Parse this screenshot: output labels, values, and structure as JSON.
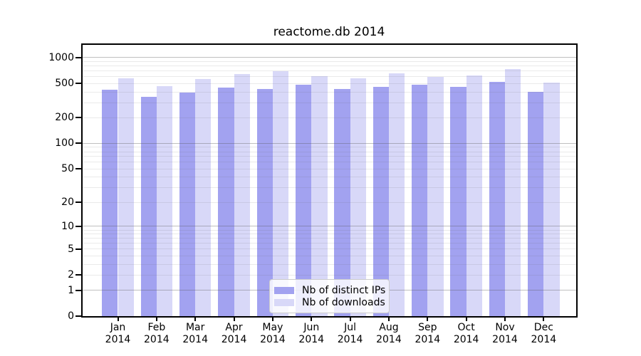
{
  "title": "reactome.db 2014",
  "colors": {
    "distinct_ips": "#a2a2f0",
    "downloads": "#d8d8f8",
    "grid_minor": "rgba(90,90,90,0.13)",
    "grid_major": "rgba(90,90,90,0.38)",
    "axis": "#000000",
    "legend_border": "#cccccc"
  },
  "legend": {
    "items": [
      {
        "label": "Nb of distinct IPs",
        "color_key": "distinct_ips"
      },
      {
        "label": "Nb of downloads",
        "color_key": "downloads"
      }
    ]
  },
  "chart_data": {
    "type": "bar",
    "title": "reactome.db 2014",
    "categories": [
      "Jan",
      "Feb",
      "Mar",
      "Apr",
      "May",
      "Jun",
      "Jul",
      "Aug",
      "Sep",
      "Oct",
      "Nov",
      "Dec"
    ],
    "year": "2014",
    "series": [
      {
        "name": "Nb of distinct IPs",
        "values": [
          420,
          350,
          390,
          445,
          430,
          480,
          435,
          460,
          480,
          455,
          520,
          400
        ]
      },
      {
        "name": "Nb of downloads",
        "values": [
          580,
          465,
          565,
          640,
          695,
          610,
          575,
          660,
          600,
          620,
          740,
          510
        ]
      }
    ],
    "xlabel": "",
    "ylabel": "",
    "yticks": [
      1000,
      500,
      200,
      100,
      50,
      20,
      10,
      5,
      2,
      1,
      0
    ],
    "grid_major_values": [
      1,
      10,
      100,
      1000
    ],
    "grid_minor_values": [
      2,
      3,
      4,
      5,
      6,
      7,
      8,
      9,
      20,
      30,
      40,
      50,
      60,
      70,
      80,
      90,
      200,
      300,
      400,
      500,
      600,
      700,
      800,
      900
    ],
    "scale": "log1p",
    "ylim_top_value": 1440,
    "grid": "on",
    "legend_position": "lower-center"
  }
}
